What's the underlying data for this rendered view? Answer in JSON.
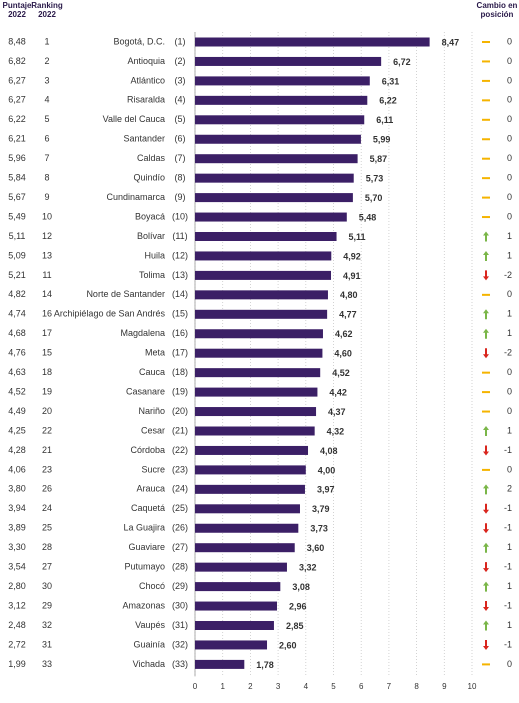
{
  "chart_data": {
    "type": "bar",
    "orientation": "horizontal",
    "color": "#3b1f66",
    "headers": {
      "score_2022": [
        "Puntaje",
        "2022"
      ],
      "rank_2022": [
        "Ranking",
        "2022"
      ],
      "change": [
        "Cambio en",
        "posición"
      ]
    },
    "score_2022": [
      "8,48",
      "6,82",
      "6,27",
      "6,27",
      "6,22",
      "6,21",
      "5,96",
      "5,84",
      "5,67",
      "5,49",
      "5,11",
      "5,09",
      "5,21",
      "4,82",
      "4,74",
      "4,68",
      "4,76",
      "4,63",
      "4,52",
      "4,49",
      "4,25",
      "4,28",
      "4,06",
      "3,80",
      "3,94",
      "3,89",
      "3,30",
      "3,54",
      "2,80",
      "3,12",
      "2,48",
      "2,72",
      "1,99"
    ],
    "rank_2022": [
      1,
      2,
      3,
      4,
      5,
      6,
      7,
      8,
      9,
      10,
      12,
      13,
      11,
      14,
      16,
      17,
      15,
      18,
      19,
      20,
      22,
      21,
      23,
      26,
      24,
      25,
      28,
      27,
      30,
      29,
      32,
      31,
      33
    ],
    "categories": [
      "Bogotá, D.C.",
      "Antioquia",
      "Atlántico",
      "Risaralda",
      "Valle del Cauca",
      "Santander",
      "Caldas",
      "Quindío",
      "Cundinamarca",
      "Boyacá",
      "Bolívar",
      "Huila",
      "Tolima",
      "Norte de Santander",
      "Archipiélago de San Andrés",
      "Magdalena",
      "Meta",
      "Cauca",
      "Casanare",
      "Nariño",
      "Cesar",
      "Córdoba",
      "Sucre",
      "Arauca",
      "Caquetá",
      "La Guajira",
      "Guaviare",
      "Putumayo",
      "Chocó",
      "Amazonas",
      "Vaupés",
      "Guainía",
      "Vichada"
    ],
    "rank_labels": [
      "(1)",
      "(2)",
      "(3)",
      "(4)",
      "(5)",
      "(6)",
      "(7)",
      "(8)",
      "(9)",
      "(10)",
      "(11)",
      "(12)",
      "(13)",
      "(14)",
      "(15)",
      "(16)",
      "(17)",
      "(18)",
      "(19)",
      "(20)",
      "(21)",
      "(22)",
      "(23)",
      "(24)",
      "(25)",
      "(26)",
      "(27)",
      "(28)",
      "(29)",
      "(30)",
      "(31)",
      "(32)",
      "(33)"
    ],
    "values": [
      8.47,
      6.72,
      6.31,
      6.22,
      6.11,
      5.99,
      5.87,
      5.73,
      5.7,
      5.48,
      5.11,
      4.92,
      4.91,
      4.8,
      4.77,
      4.62,
      4.6,
      4.52,
      4.42,
      4.37,
      4.32,
      4.08,
      4.0,
      3.97,
      3.79,
      3.73,
      3.6,
      3.32,
      3.08,
      2.96,
      2.85,
      2.6,
      1.78
    ],
    "value_labels": [
      "8,47",
      "6,72",
      "6,31",
      "6,22",
      "6,11",
      "5,99",
      "5,87",
      "5,73",
      "5,70",
      "5,48",
      "5,11",
      "4,92",
      "4,91",
      "4,80",
      "4,77",
      "4,62",
      "4,60",
      "4,52",
      "4,42",
      "4,37",
      "4,32",
      "4,08",
      "4,00",
      "3,97",
      "3,79",
      "3,73",
      "3,60",
      "3,32",
      "3,08",
      "2,96",
      "2,85",
      "2,60",
      "1,78"
    ],
    "change": [
      0,
      0,
      0,
      0,
      0,
      0,
      0,
      0,
      0,
      0,
      1,
      1,
      -2,
      0,
      1,
      1,
      -2,
      0,
      0,
      0,
      1,
      -1,
      0,
      2,
      -1,
      -1,
      1,
      -1,
      1,
      -1,
      1,
      -1,
      0
    ],
    "xlim": [
      0,
      10
    ],
    "xticks": [
      0,
      1,
      2,
      3,
      4,
      5,
      6,
      7,
      8,
      9,
      10
    ],
    "grid": true
  }
}
